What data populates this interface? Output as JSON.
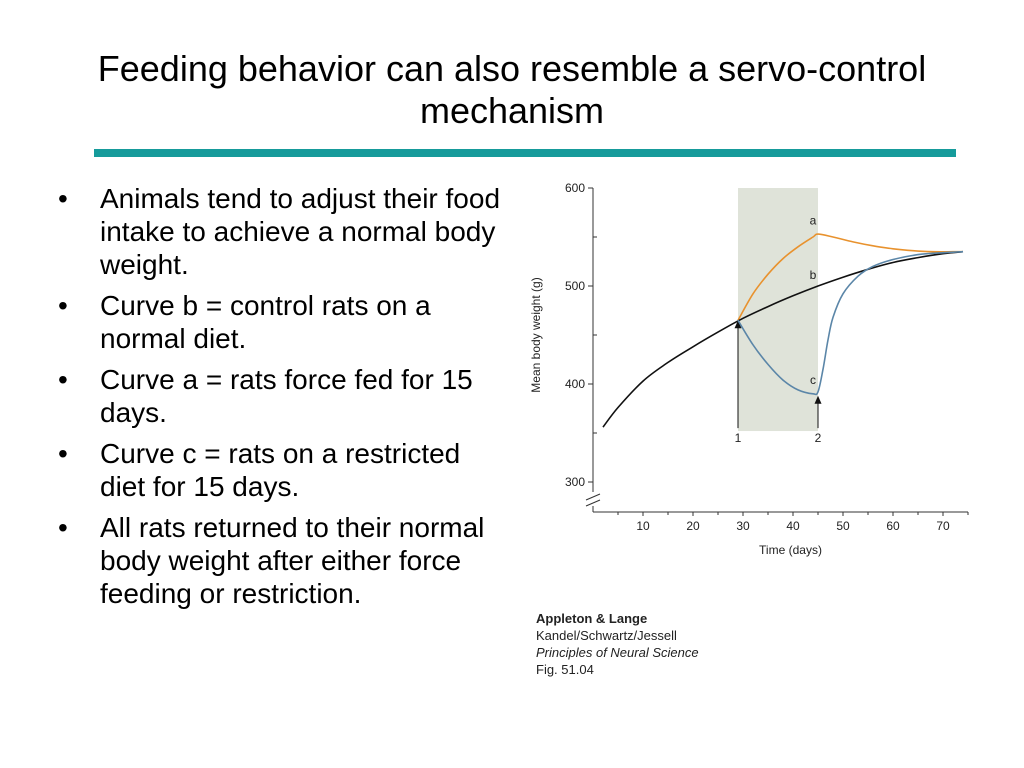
{
  "slide": {
    "title": "Feeding behavior can also resemble a servo-control mechanism",
    "rule_color": "#169b9b",
    "bullets": [
      "Animals tend to adjust their food intake to achieve a normal body weight.",
      "Curve b = control rats on a normal diet.",
      "Curve a = rats force fed for 15 days.",
      "Curve c = rats on a restricted diet for 15 days.",
      "All rats returned to their normal body weight after either force feeding or restriction."
    ],
    "bullet_glyph": "•"
  },
  "credit": {
    "publisher": "Appleton & Lange",
    "authors": "Kandel/Schwartz/Jessell",
    "book": "Principles of Neural Science",
    "figure": "Fig. 51.04"
  },
  "chart_data": {
    "type": "line",
    "title": "",
    "xlabel": "Time (days)",
    "ylabel": "Mean body weight (g)",
    "xlim": [
      0,
      75
    ],
    "ylim": [
      300,
      600
    ],
    "y_axis_broken": true,
    "x_ticks": [
      10,
      20,
      30,
      40,
      50,
      60,
      70
    ],
    "y_ticks": [
      300,
      400,
      500,
      600
    ],
    "grid": false,
    "shaded_interval": {
      "x": [
        29,
        45
      ],
      "color": "#dfe3d9"
    },
    "markers": [
      {
        "label": "1",
        "x": 29,
        "y_from": 355,
        "y_to": 465
      },
      {
        "label": "2",
        "x": 45,
        "y_from": 355,
        "y_to": 388
      }
    ],
    "series": [
      {
        "name": "a",
        "color": "#e8922e",
        "x": [
          29,
          32,
          35,
          38,
          41,
          44,
          45,
          48,
          52,
          56,
          60,
          64,
          68,
          72,
          74
        ],
        "y": [
          465,
          492,
          512,
          528,
          540,
          550,
          553,
          550,
          545,
          541,
          538,
          536,
          535,
          535,
          535
        ]
      },
      {
        "name": "b",
        "color": "#111111",
        "x": [
          2,
          5,
          10,
          15,
          20,
          25,
          30,
          35,
          40,
          45,
          50,
          55,
          60,
          65,
          70,
          74
        ],
        "y": [
          356,
          376,
          403,
          422,
          438,
          453,
          467,
          479,
          490,
          500,
          509,
          517,
          524,
          529,
          533,
          535
        ]
      },
      {
        "name": "c",
        "color": "#5b86a8",
        "x": [
          29,
          32,
          35,
          38,
          41,
          44,
          45,
          46,
          47,
          48,
          50,
          53,
          56,
          60,
          65,
          70,
          74
        ],
        "y": [
          465,
          440,
          420,
          404,
          394,
          390,
          392,
          415,
          445,
          468,
          492,
          510,
          520,
          527,
          532,
          534,
          535
        ]
      }
    ],
    "series_label_positions": [
      {
        "name": "a",
        "x": 44,
        "y": 563
      },
      {
        "name": "b",
        "x": 44,
        "y": 507
      },
      {
        "name": "c",
        "x": 44,
        "y": 400
      }
    ]
  }
}
